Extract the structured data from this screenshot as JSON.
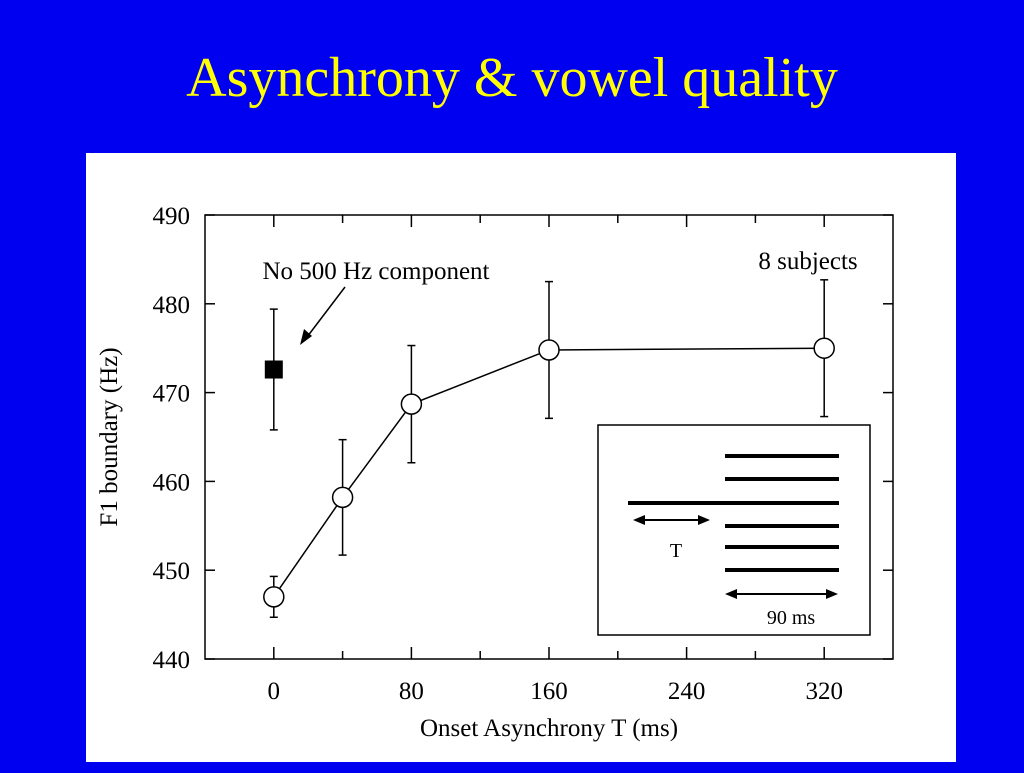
{
  "title": "Asynchrony & vowel quality",
  "chart_data": {
    "type": "line",
    "x_label": "Onset Asynchrony T (ms)",
    "y_label": "F1 boundary (Hz)",
    "xlim": [
      -40,
      360
    ],
    "xticks": [
      0,
      80,
      160,
      240,
      320
    ],
    "xminorticks": [
      40,
      120,
      200,
      280
    ],
    "ylim": [
      440,
      490
    ],
    "yticks": [
      440,
      450,
      460,
      470,
      480,
      490
    ],
    "series": [
      {
        "x": [
          0,
          40,
          80,
          160,
          320
        ],
        "values": [
          447,
          458.2,
          468.7,
          474.8,
          475.0
        ],
        "errors": [
          2.3,
          6.5,
          6.6,
          7.7,
          7.7
        ],
        "marker": "circle",
        "color": "#000000"
      },
      {
        "x": [
          0
        ],
        "values": [
          472.6
        ],
        "errors": [
          6.8
        ],
        "marker": "square",
        "color": "#000000"
      }
    ],
    "annotations": [
      "No 500 Hz component",
      "8 subjects"
    ],
    "inset_labels": [
      "T",
      "90 ms"
    ]
  }
}
